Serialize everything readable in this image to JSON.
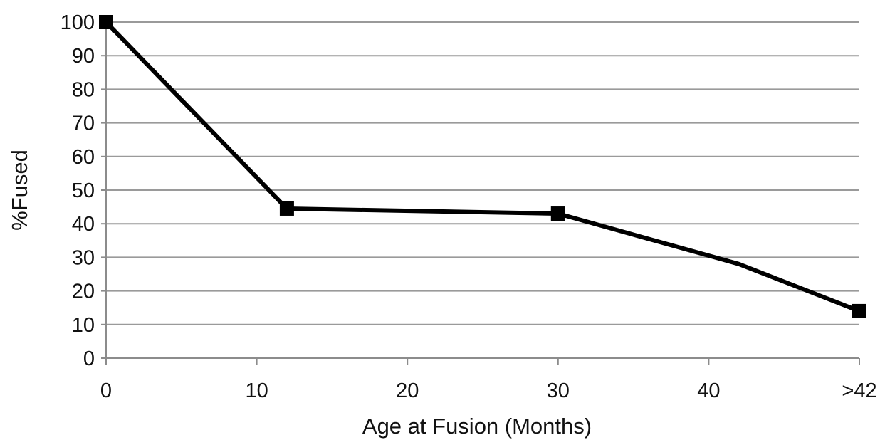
{
  "chart_data": {
    "type": "line",
    "title": "",
    "xlabel": "Age at Fusion (Months)",
    "ylabel": "%Fused",
    "xlim": [
      0,
      50
    ],
    "ylim": [
      0,
      100
    ],
    "x_ticks": [
      {
        "value": 0,
        "label": "0"
      },
      {
        "value": 10,
        "label": "10"
      },
      {
        "value": 20,
        "label": "20"
      },
      {
        "value": 30,
        "label": "30"
      },
      {
        "value": 40,
        "label": "40"
      },
      {
        "value": 50,
        "label": ">42"
      }
    ],
    "y_ticks": [
      {
        "value": 0,
        "label": "0"
      },
      {
        "value": 10,
        "label": "10"
      },
      {
        "value": 20,
        "label": "20"
      },
      {
        "value": 30,
        "label": "30"
      },
      {
        "value": 40,
        "label": "40"
      },
      {
        "value": 50,
        "label": "50"
      },
      {
        "value": 60,
        "label": "60"
      },
      {
        "value": 70,
        "label": "70"
      },
      {
        "value": 80,
        "label": "80"
      },
      {
        "value": 90,
        "label": "90"
      },
      {
        "value": 100,
        "label": "100"
      }
    ],
    "grid": true,
    "legend": "none",
    "series": [
      {
        "line_points": [
          {
            "x": 0,
            "y": 100
          },
          {
            "x": 12,
            "y": 44.5
          },
          {
            "x": 30,
            "y": 43
          },
          {
            "x": 42,
            "y": 28
          },
          {
            "x": 50,
            "y": 14
          }
        ],
        "markers": [
          {
            "x": 0,
            "y": 100
          },
          {
            "x": 12,
            "y": 44.5
          },
          {
            "x": 30,
            "y": 43
          },
          {
            "x": 50,
            "y": 14
          }
        ],
        "color": "#000000"
      }
    ]
  }
}
